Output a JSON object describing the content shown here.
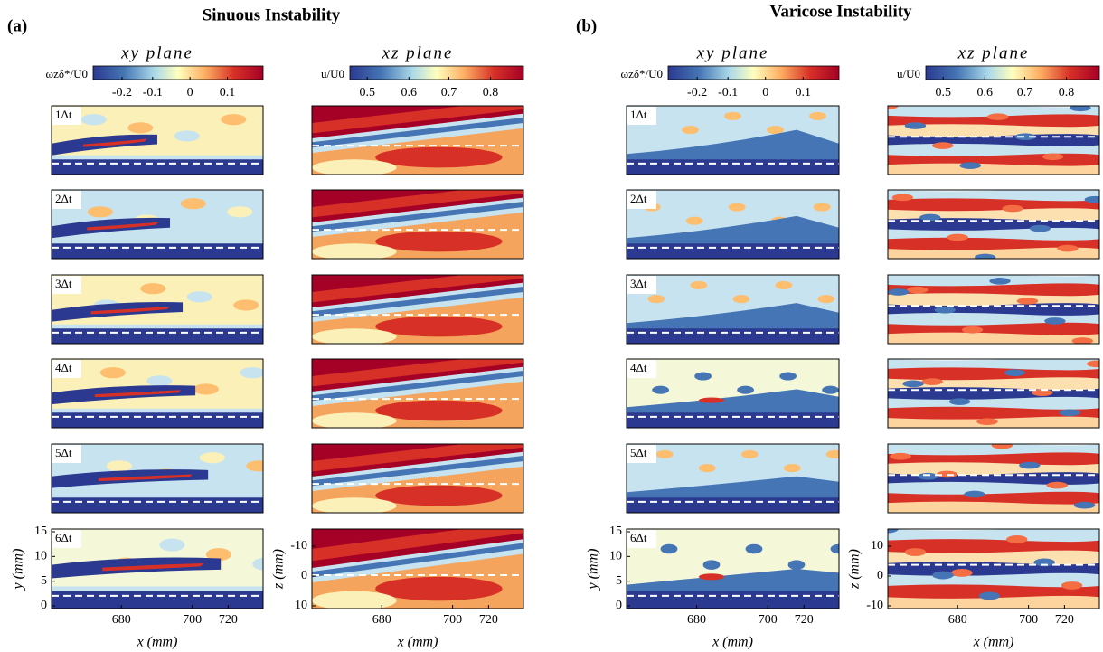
{
  "figure": {
    "panels": [
      {
        "label": "(a)",
        "title": "Sinuous Instability",
        "columns": [
          {
            "title": "xy  plane",
            "colorbar": {
              "label": "ωzδ*/U0",
              "ticks": [
                "-0.2",
                "-0.1",
                "0",
                "0.1"
              ]
            },
            "y_label": "y (mm)",
            "yticks": [
              "0",
              "5",
              "10",
              "15"
            ]
          },
          {
            "title": "xz  plane",
            "colorbar": {
              "label": "u/U0",
              "ticks": [
                "0.5",
                "0.6",
                "0.7",
                "0.8"
              ]
            },
            "y_label": "z (mm)",
            "yticks": [
              "-10",
              "0",
              "10"
            ]
          }
        ],
        "x_label": "x (mm)",
        "xticks": [
          "680",
          "700",
          "720"
        ],
        "time_labels": [
          "1Δt",
          "2Δt",
          "3Δt",
          "4Δt",
          "5Δt",
          "6Δt"
        ]
      },
      {
        "label": "(b)",
        "title": "Varicose Instability",
        "columns": [
          {
            "title": "xy  plane",
            "colorbar": {
              "label": "ωzδ*/U0",
              "ticks": [
                "-0.2",
                "-0.1",
                "0",
                "0.1"
              ]
            },
            "y_label": "y (mm)",
            "yticks": [
              "0",
              "5",
              "10",
              "15"
            ]
          },
          {
            "title": "xz  plane",
            "colorbar": {
              "label": "u/U0",
              "ticks": [
                "0.5",
                "0.6",
                "0.7",
                "0.8"
              ]
            },
            "y_label": "z (mm)",
            "yticks": [
              "10",
              "0",
              "-10"
            ]
          }
        ],
        "x_label": "x (mm)",
        "xticks": [
          "680",
          "700",
          "720"
        ],
        "time_labels": [
          "1Δt",
          "2Δt",
          "3Δt",
          "4Δt",
          "5Δt",
          "6Δt"
        ]
      }
    ]
  }
}
